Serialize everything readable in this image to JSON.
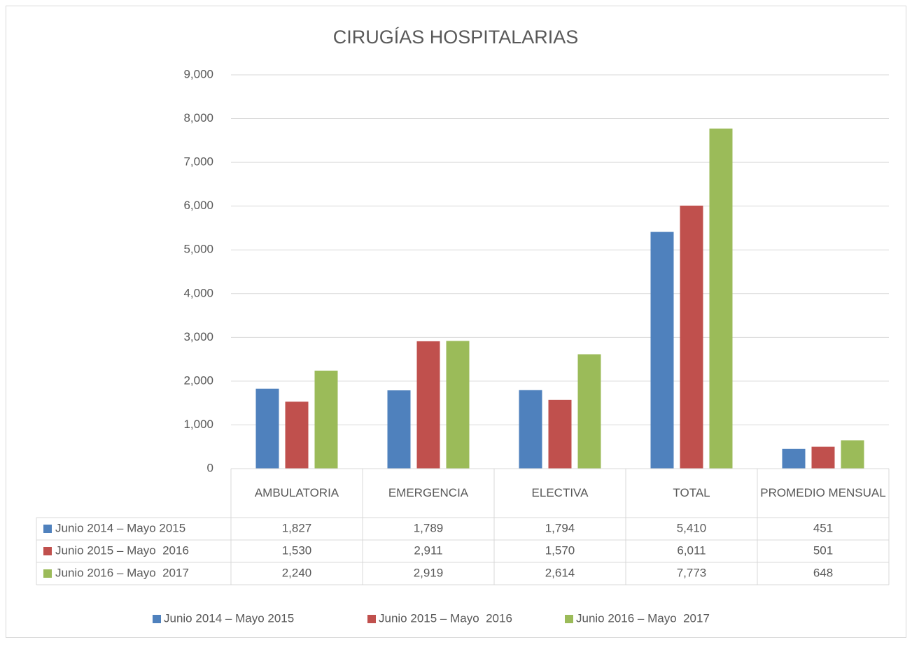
{
  "chart_data": {
    "type": "bar",
    "title": "CIRUGÍAS HOSPITALARIAS",
    "categories": [
      "AMBULATORIA",
      "EMERGENCIA",
      "ELECTIVA",
      "TOTAL",
      "PROMEDIO MENSUAL"
    ],
    "series": [
      {
        "name": "Junio 2014 – Mayo 2015",
        "color": "#4f81bd",
        "values": [
          1827,
          1789,
          1794,
          5410,
          451
        ],
        "value_labels": [
          "1,827",
          "1,789",
          "1,794",
          "5,410",
          "451"
        ]
      },
      {
        "name": "Junio 2015 – Mayo  2016",
        "color": "#c0504d",
        "values": [
          1530,
          2911,
          1570,
          6011,
          501
        ],
        "value_labels": [
          "1,530",
          "2,911",
          "1,570",
          "6,011",
          "501"
        ]
      },
      {
        "name": "Junio 2016 – Mayo  2017",
        "color": "#9bbb59",
        "values": [
          2240,
          2919,
          2614,
          7773,
          648
        ],
        "value_labels": [
          "2,240",
          "2,919",
          "2,614",
          "7,773",
          "648"
        ]
      }
    ],
    "ylim": [
      0,
      9000
    ],
    "yticks": [
      0,
      {
        "value": 1000,
        "label": "1,000"
      },
      {
        "value": 2000,
        "label": "2,000"
      },
      {
        "value": 3000,
        "label": "3,000"
      },
      {
        "value": 4000,
        "label": "4,000"
      },
      {
        "value": 5000,
        "label": "5,000"
      },
      {
        "value": 6000,
        "label": "6,000"
      },
      {
        "value": 7000,
        "label": "7,000"
      },
      {
        "value": 8000,
        "label": "8,000"
      },
      {
        "value": 9000,
        "label": "9,000"
      }
    ],
    "grid": true,
    "legend": "bottom"
  }
}
